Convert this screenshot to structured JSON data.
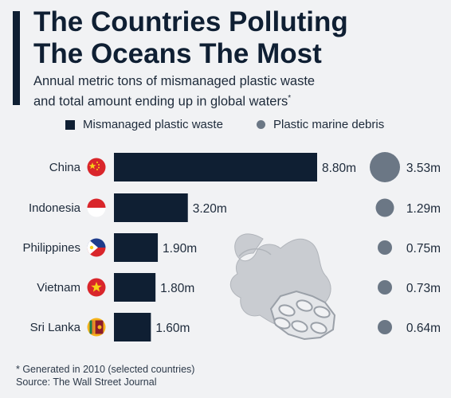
{
  "header": {
    "title_line1": "The Countries Polluting",
    "title_line2": "The Oceans The Most",
    "subtitle_line1": "Annual metric tons of mismanaged plastic waste",
    "subtitle_line2": "and total amount ending up in global waters",
    "subtitle_marker": "*"
  },
  "legend": {
    "bar_label": "Mismanaged plastic waste",
    "dot_label": "Plastic marine debris"
  },
  "colors": {
    "bar": "#0f1f33",
    "dot": "#6b7785",
    "flag_red": "#d9262b",
    "flag_blue": "#1e3c8c",
    "flag_yellow": "#f7d117"
  },
  "chart_data": {
    "type": "bar",
    "orientation": "horizontal",
    "categories": [
      "China",
      "Indonesia",
      "Philippines",
      "Vietnam",
      "Sri Lanka"
    ],
    "series": [
      {
        "name": "Mismanaged plastic waste",
        "values": [
          8.8,
          3.2,
          1.9,
          1.8,
          1.6
        ],
        "labels": [
          "8.80m",
          "3.20m",
          "1.90m",
          "1.80m",
          "1.60m"
        ]
      },
      {
        "name": "Plastic marine debris",
        "values": [
          3.53,
          1.29,
          0.75,
          0.73,
          0.64
        ],
        "labels": [
          "3.53m",
          "1.29m",
          "0.75m",
          "0.73m",
          "0.64m"
        ]
      }
    ],
    "flag_icons": [
      "china-flag-icon",
      "indonesia-flag-icon",
      "philippines-flag-icon",
      "vietnam-flag-icon",
      "sri-lanka-flag-icon"
    ],
    "unit": "m"
  },
  "footnote": {
    "note": "* Generated in 2010 (selected countries)",
    "source": "Source: The Wall Street Journal"
  }
}
